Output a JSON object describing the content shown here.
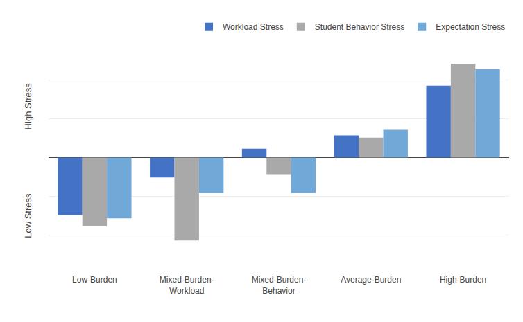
{
  "chart_data": {
    "type": "bar",
    "categories": [
      "Low-Burden",
      "Mixed-Burden-\nWorkload",
      "Mixed-Burden-\nBehavior",
      "Average-Burden",
      "High-Burden"
    ],
    "series": [
      {
        "name": "Workload Stress",
        "color": "#4472C4",
        "values": [
          -0.52,
          -0.18,
          0.08,
          0.2,
          0.65
        ]
      },
      {
        "name": "Student Behavior Stress",
        "color": "#A9A9A9",
        "values": [
          -0.62,
          -0.75,
          -0.15,
          0.18,
          0.85
        ]
      },
      {
        "name": "Expectation Stress",
        "color": "#70A8D8",
        "values": [
          -0.55,
          -0.32,
          -0.32,
          0.25,
          0.8
        ]
      }
    ],
    "annotations": [
      "High Stress",
      "Low Stress"
    ],
    "ylim": [
      -1.05,
      1.05
    ],
    "yticks": [
      -1.05,
      -0.7,
      -0.35,
      0,
      0.35,
      0.7,
      1.05
    ],
    "grid": true,
    "legend": "upper right",
    "tick_labels": "x"
  }
}
